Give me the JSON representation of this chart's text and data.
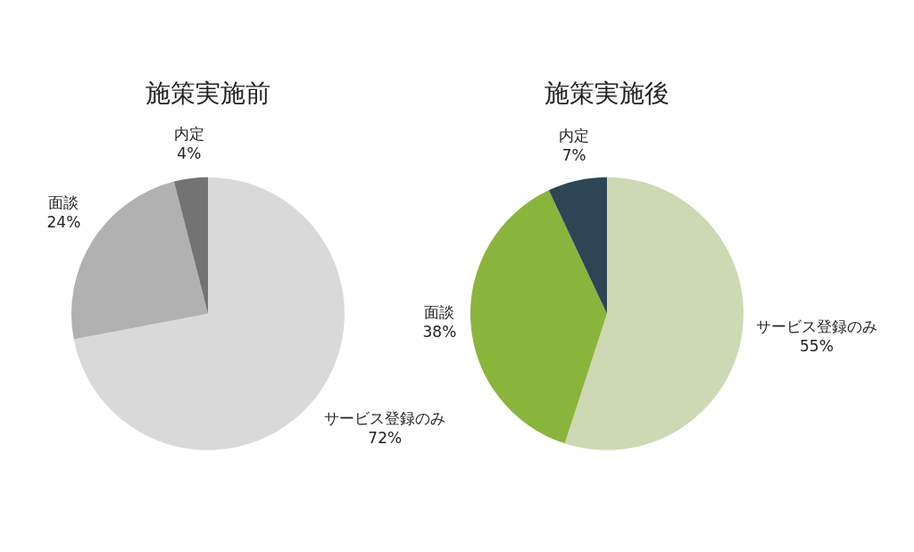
{
  "chart_data": [
    {
      "type": "pie",
      "title": "施策実施前",
      "categories": [
        "サービス登録のみ",
        "面談",
        "内定"
      ],
      "values": [
        72,
        24,
        4
      ],
      "value_labels": [
        "72%",
        "24%",
        "4%"
      ],
      "colors": [
        "#d9d9d9",
        "#b1b1b1",
        "#737373"
      ],
      "legend": false
    },
    {
      "type": "pie",
      "title": "施策実施後",
      "categories": [
        "サービス登録のみ",
        "面談",
        "内定"
      ],
      "values": [
        55,
        38,
        7
      ],
      "value_labels": [
        "55%",
        "38%",
        "7%"
      ],
      "colors": [
        "#cdd9b3",
        "#8ab53c",
        "#2e4556"
      ],
      "legend": false
    }
  ]
}
